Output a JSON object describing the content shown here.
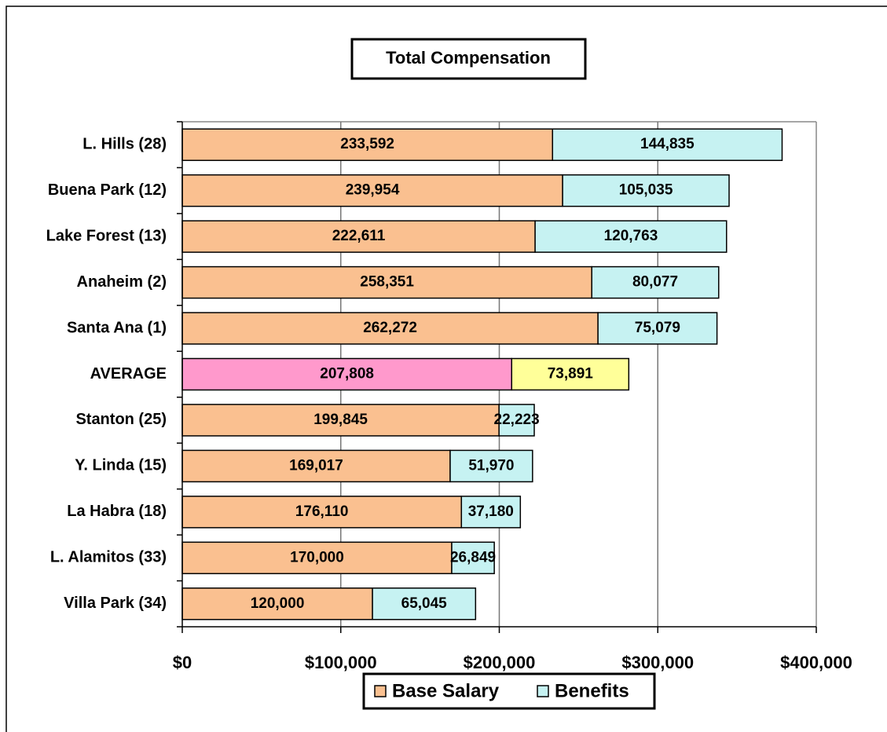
{
  "chart_data": {
    "type": "bar",
    "stacked": true,
    "orientation": "horizontal",
    "title": "Total Compensation",
    "categories": [
      "L. Hills (28)",
      "Buena Park (12)",
      "Lake Forest (13)",
      "Anaheim (2)",
      "Santa Ana (1)",
      "AVERAGE",
      "Stanton (25)",
      "Y. Linda (15)",
      "La Habra (18)",
      "L. Alamitos (33)",
      "Villa Park (34)"
    ],
    "series": [
      {
        "name": "Base Salary",
        "color": "#FAC090",
        "colors": [
          "#FAC090",
          "#FAC090",
          "#FAC090",
          "#FAC090",
          "#FAC090",
          "#FF99CC",
          "#FAC090",
          "#FAC090",
          "#FAC090",
          "#FAC090",
          "#FAC090"
        ],
        "values": [
          233592,
          239954,
          222611,
          258351,
          262272,
          207808,
          199845,
          169017,
          176110,
          170000,
          120000
        ],
        "value_labels": [
          "233,592",
          "239,954",
          "222,611",
          "258,351",
          "262,272",
          "207,808",
          "199,845",
          "169,017",
          "176,110",
          "170,000",
          "120,000"
        ]
      },
      {
        "name": "Benefits",
        "color": "#C6F2F2",
        "colors": [
          "#C6F2F2",
          "#C6F2F2",
          "#C6F2F2",
          "#C6F2F2",
          "#C6F2F2",
          "#FFFF99",
          "#C6F2F2",
          "#C6F2F2",
          "#C6F2F2",
          "#C6F2F2",
          "#C6F2F2"
        ],
        "values": [
          144835,
          105035,
          120763,
          80077,
          75079,
          73891,
          22223,
          51970,
          37180,
          26849,
          65045
        ],
        "value_labels": [
          "144,835",
          "105,035",
          "120,763",
          "80,077",
          "75,079",
          "73,891",
          "22,223",
          "51,970",
          "37,180",
          "26,849",
          "65,045"
        ]
      }
    ],
    "xlim": [
      0,
      400000
    ],
    "xticks": [
      {
        "value": 0,
        "label": "$0"
      },
      {
        "value": 100000,
        "label": "$100,000"
      },
      {
        "value": 200000,
        "label": "$200,000"
      },
      {
        "value": 300000,
        "label": "$300,000"
      },
      {
        "value": 400000,
        "label": "$400,000"
      }
    ],
    "grid": true,
    "legend": "bottom"
  }
}
